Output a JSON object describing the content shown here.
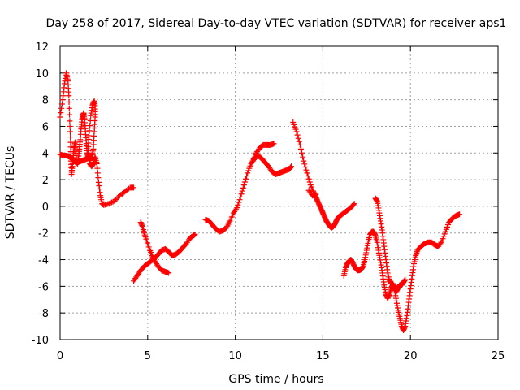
{
  "chart_data": {
    "type": "scatter",
    "title": "Day 258 of 2017, Sidereal Day-to-day VTEC variation (SDTVAR) for receiver aps1",
    "xlabel": "GPS time / hours",
    "ylabel": "SDTVAR / TECUs",
    "xlim": [
      0,
      25
    ],
    "ylim": [
      -10,
      12
    ],
    "xticks": [
      "0",
      "5",
      "10",
      "15",
      "20",
      "25"
    ],
    "yticks": [
      "-10",
      "-8",
      "-6",
      "-4",
      "-2",
      "0",
      "2",
      "4",
      "6",
      "8",
      "10",
      "12"
    ],
    "grid": true,
    "marker": "+",
    "color": "#ff0000",
    "segments": [
      {
        "points": [
          [
            0.0,
            6.7
          ],
          [
            0.15,
            8.0
          ],
          [
            0.25,
            9.2
          ],
          [
            0.35,
            10.0
          ],
          [
            0.45,
            9.4
          ],
          [
            0.5,
            8.3
          ],
          [
            0.55,
            6.4
          ],
          [
            0.6,
            4.8
          ],
          [
            0.62,
            3.4
          ],
          [
            0.65,
            2.4
          ],
          [
            0.7,
            3.0
          ],
          [
            0.75,
            3.8
          ],
          [
            0.8,
            4.4
          ],
          [
            0.85,
            4.8
          ],
          [
            0.9,
            4.0
          ],
          [
            0.95,
            3.3
          ],
          [
            1.0,
            3.2
          ],
          [
            1.05,
            3.6
          ],
          [
            1.1,
            4.3
          ],
          [
            1.15,
            5.0
          ],
          [
            1.2,
            5.8
          ],
          [
            1.25,
            6.5
          ],
          [
            1.3,
            6.8
          ],
          [
            1.35,
            7.0
          ],
          [
            1.4,
            6.5
          ],
          [
            1.45,
            5.6
          ],
          [
            1.5,
            4.7
          ],
          [
            1.55,
            4.0
          ],
          [
            1.6,
            3.7
          ],
          [
            1.7,
            3.5
          ],
          [
            1.8,
            3.7
          ],
          [
            1.9,
            4.3
          ],
          [
            1.95,
            5.6
          ],
          [
            2.0,
            6.7
          ],
          [
            2.0,
            7.5
          ],
          [
            1.95,
            7.9
          ],
          [
            1.85,
            7.6
          ],
          [
            1.75,
            6.8
          ],
          [
            1.65,
            5.3
          ],
          [
            1.6,
            4.2
          ],
          [
            1.7,
            3.2
          ],
          [
            1.8,
            3.0
          ],
          [
            1.9,
            3.2
          ],
          [
            2.0,
            3.7
          ],
          [
            2.1,
            3.2
          ],
          [
            2.2,
            1.8
          ],
          [
            2.3,
            0.8
          ],
          [
            2.4,
            0.2
          ],
          [
            2.5,
            0.1
          ],
          [
            2.8,
            0.2
          ],
          [
            3.1,
            0.4
          ],
          [
            3.4,
            0.8
          ],
          [
            3.7,
            1.1
          ],
          [
            4.0,
            1.4
          ],
          [
            4.2,
            1.4
          ]
        ]
      },
      {
        "points": [
          [
            0.0,
            3.9
          ],
          [
            0.2,
            3.8
          ],
          [
            0.4,
            3.8
          ],
          [
            0.55,
            3.7
          ],
          [
            0.7,
            3.6
          ],
          [
            0.8,
            3.4
          ],
          [
            0.9,
            3.3
          ],
          [
            1.0,
            3.3
          ],
          [
            1.2,
            3.4
          ],
          [
            1.4,
            3.5
          ],
          [
            1.6,
            3.6
          ]
        ]
      },
      {
        "points": [
          [
            4.2,
            -5.6
          ],
          [
            4.4,
            -5.2
          ],
          [
            4.6,
            -4.8
          ],
          [
            4.8,
            -4.5
          ],
          [
            5.0,
            -4.3
          ],
          [
            5.2,
            -4.1
          ],
          [
            5.4,
            -3.9
          ],
          [
            5.6,
            -3.6
          ],
          [
            5.8,
            -3.3
          ],
          [
            6.0,
            -3.2
          ],
          [
            6.2,
            -3.4
          ],
          [
            6.4,
            -3.7
          ],
          [
            6.6,
            -3.6
          ],
          [
            6.8,
            -3.4
          ],
          [
            7.0,
            -3.1
          ],
          [
            7.2,
            -2.8
          ],
          [
            7.4,
            -2.4
          ],
          [
            7.6,
            -2.2
          ],
          [
            7.7,
            -2.1
          ]
        ]
      },
      {
        "points": [
          [
            4.6,
            -1.2
          ],
          [
            4.7,
            -1.5
          ],
          [
            4.8,
            -2.0
          ],
          [
            4.95,
            -2.6
          ],
          [
            5.1,
            -3.2
          ],
          [
            5.25,
            -3.7
          ],
          [
            5.4,
            -4.1
          ],
          [
            5.6,
            -4.5
          ],
          [
            5.8,
            -4.8
          ],
          [
            6.0,
            -4.9
          ],
          [
            6.2,
            -5.0
          ]
        ]
      },
      {
        "points": [
          [
            8.3,
            -1.0
          ],
          [
            8.5,
            -1.1
          ],
          [
            8.7,
            -1.4
          ],
          [
            8.9,
            -1.7
          ],
          [
            9.1,
            -1.9
          ],
          [
            9.3,
            -1.8
          ],
          [
            9.5,
            -1.6
          ],
          [
            9.7,
            -1.1
          ],
          [
            9.9,
            -0.5
          ],
          [
            10.1,
            -0.1
          ],
          [
            10.3,
            0.7
          ],
          [
            10.5,
            1.6
          ],
          [
            10.7,
            2.5
          ],
          [
            10.9,
            3.2
          ],
          [
            11.1,
            3.6
          ],
          [
            11.3,
            3.8
          ],
          [
            11.5,
            3.6
          ],
          [
            11.7,
            3.3
          ],
          [
            11.9,
            3.0
          ],
          [
            12.1,
            2.6
          ],
          [
            12.3,
            2.4
          ],
          [
            12.5,
            2.5
          ],
          [
            12.7,
            2.6
          ],
          [
            12.9,
            2.7
          ],
          [
            13.1,
            2.8
          ],
          [
            13.2,
            3.0
          ]
        ]
      },
      {
        "points": [
          [
            11.0,
            3.4
          ],
          [
            11.2,
            4.0
          ],
          [
            11.4,
            4.4
          ],
          [
            11.6,
            4.6
          ],
          [
            11.8,
            4.6
          ],
          [
            12.0,
            4.6
          ],
          [
            12.2,
            4.7
          ]
        ]
      },
      {
        "points": [
          [
            13.3,
            6.3
          ],
          [
            13.5,
            5.6
          ],
          [
            13.7,
            4.6
          ],
          [
            13.9,
            3.4
          ],
          [
            14.1,
            2.5
          ],
          [
            14.3,
            1.6
          ],
          [
            14.5,
            1.0
          ],
          [
            14.6,
            0.7
          ],
          [
            14.7,
            0.4
          ],
          [
            14.8,
            0.1
          ],
          [
            14.9,
            -0.2
          ],
          [
            15.0,
            -0.5
          ],
          [
            15.1,
            -0.8
          ],
          [
            15.2,
            -1.1
          ],
          [
            15.3,
            -1.3
          ],
          [
            15.4,
            -1.5
          ],
          [
            15.5,
            -1.6
          ],
          [
            15.6,
            -1.5
          ],
          [
            15.7,
            -1.3
          ],
          [
            15.8,
            -1.0
          ],
          [
            15.9,
            -0.8
          ],
          [
            16.0,
            -0.7
          ],
          [
            16.2,
            -0.5
          ],
          [
            16.4,
            -0.3
          ],
          [
            16.6,
            -0.1
          ],
          [
            16.8,
            0.2
          ]
        ]
      },
      {
        "points": [
          [
            14.2,
            1.2
          ],
          [
            14.4,
            0.8
          ],
          [
            14.6,
            0.9
          ]
        ]
      },
      {
        "points": [
          [
            16.2,
            -5.2
          ],
          [
            16.3,
            -4.6
          ],
          [
            16.4,
            -4.3
          ],
          [
            16.5,
            -4.1
          ],
          [
            16.6,
            -4.0
          ],
          [
            16.7,
            -4.2
          ],
          [
            16.8,
            -4.5
          ],
          [
            16.9,
            -4.7
          ],
          [
            17.0,
            -4.8
          ],
          [
            17.1,
            -4.8
          ],
          [
            17.2,
            -4.7
          ],
          [
            17.3,
            -4.5
          ],
          [
            17.4,
            -4.0
          ],
          [
            17.5,
            -3.3
          ],
          [
            17.6,
            -2.6
          ],
          [
            17.7,
            -2.1
          ],
          [
            17.8,
            -1.9
          ],
          [
            17.9,
            -1.9
          ],
          [
            18.0,
            -2.2
          ],
          [
            18.1,
            -2.7
          ],
          [
            18.2,
            -3.5
          ],
          [
            18.3,
            -4.2
          ],
          [
            18.4,
            -5.0
          ],
          [
            18.5,
            -5.9
          ],
          [
            18.6,
            -6.6
          ],
          [
            18.7,
            -6.9
          ],
          [
            18.8,
            -6.6
          ],
          [
            18.9,
            -6.1
          ],
          [
            19.0,
            -5.9
          ],
          [
            19.1,
            -6.3
          ],
          [
            19.2,
            -7.1
          ],
          [
            19.3,
            -7.8
          ],
          [
            19.4,
            -8.4
          ],
          [
            19.5,
            -9.0
          ],
          [
            19.6,
            -9.3
          ],
          [
            19.7,
            -9.0
          ],
          [
            19.8,
            -8.2
          ],
          [
            19.9,
            -7.2
          ],
          [
            20.0,
            -6.2
          ],
          [
            20.1,
            -5.2
          ],
          [
            20.2,
            -4.3
          ],
          [
            20.3,
            -3.7
          ],
          [
            20.4,
            -3.3
          ],
          [
            20.6,
            -3.0
          ],
          [
            20.8,
            -2.8
          ],
          [
            21.0,
            -2.7
          ],
          [
            21.2,
            -2.7
          ],
          [
            21.4,
            -2.9
          ],
          [
            21.6,
            -3.0
          ],
          [
            21.8,
            -2.6
          ],
          [
            22.0,
            -1.9
          ],
          [
            22.2,
            -1.2
          ],
          [
            22.4,
            -0.9
          ],
          [
            22.6,
            -0.7
          ],
          [
            22.8,
            -0.6
          ]
        ]
      },
      {
        "points": [
          [
            18.0,
            0.6
          ],
          [
            18.1,
            0.4
          ],
          [
            18.2,
            -0.3
          ],
          [
            18.3,
            -1.1
          ],
          [
            18.4,
            -2.0
          ],
          [
            18.5,
            -3.0
          ],
          [
            18.6,
            -4.0
          ],
          [
            18.7,
            -5.0
          ],
          [
            18.8,
            -5.6
          ],
          [
            18.9,
            -5.8
          ],
          [
            19.0,
            -5.8
          ],
          [
            19.1,
            -6.1
          ],
          [
            19.2,
            -6.4
          ],
          [
            19.3,
            -6.1
          ],
          [
            19.4,
            -5.9
          ],
          [
            19.5,
            -5.9
          ],
          [
            19.6,
            -5.7
          ],
          [
            19.7,
            -5.5
          ]
        ]
      }
    ]
  }
}
